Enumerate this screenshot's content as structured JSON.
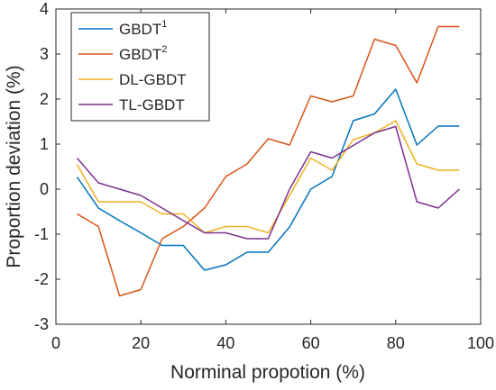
{
  "chart_data": {
    "type": "line",
    "xlabel": "Norminal propotion (%)",
    "ylabel": "Proportion deviation (%)",
    "xlim": [
      0,
      100
    ],
    "ylim": [
      -3,
      4
    ],
    "xticks": [
      0,
      20,
      40,
      60,
      80,
      100
    ],
    "yticks": [
      -3,
      -2,
      -1,
      0,
      1,
      2,
      3,
      4
    ],
    "x": [
      5,
      10,
      15,
      20,
      25,
      30,
      35,
      40,
      45,
      50,
      55,
      60,
      65,
      70,
      75,
      80,
      85,
      90,
      95
    ],
    "series": [
      {
        "name": "GBDT",
        "superscript": "1",
        "color": "#0072BD",
        "values": [
          0.27,
          -0.42,
          -0.7,
          -0.97,
          -1.25,
          -1.25,
          -1.8,
          -1.68,
          -1.4,
          -1.4,
          -0.84,
          0.0,
          0.28,
          1.52,
          1.67,
          2.22,
          0.98,
          1.4,
          1.4
        ]
      },
      {
        "name": "GBDT",
        "superscript": "2",
        "color": "#D95319",
        "values": [
          -0.55,
          -0.83,
          -2.37,
          -2.23,
          -1.1,
          -0.83,
          -0.42,
          0.28,
          0.56,
          1.12,
          0.98,
          2.07,
          1.94,
          2.07,
          3.33,
          3.19,
          2.36,
          3.61,
          3.61
        ]
      },
      {
        "name": "DL-GBDT",
        "superscript": "",
        "color": "#EDB120",
        "values": [
          0.55,
          -0.28,
          -0.28,
          -0.28,
          -0.55,
          -0.55,
          -0.97,
          -0.83,
          -0.83,
          -0.97,
          -0.14,
          0.69,
          0.42,
          1.1,
          1.25,
          1.52,
          0.56,
          0.42,
          0.42
        ]
      },
      {
        "name": "TL-GBDT",
        "superscript": "",
        "color": "#7E2F8E",
        "values": [
          0.69,
          0.14,
          0.0,
          -0.14,
          -0.42,
          -0.7,
          -0.97,
          -0.97,
          -1.1,
          -1.1,
          0.0,
          0.83,
          0.69,
          0.97,
          1.25,
          1.39,
          -0.28,
          -0.42,
          0.0
        ]
      }
    ],
    "grid": false,
    "legend_position": "top-left",
    "axis_color": "#262626"
  }
}
